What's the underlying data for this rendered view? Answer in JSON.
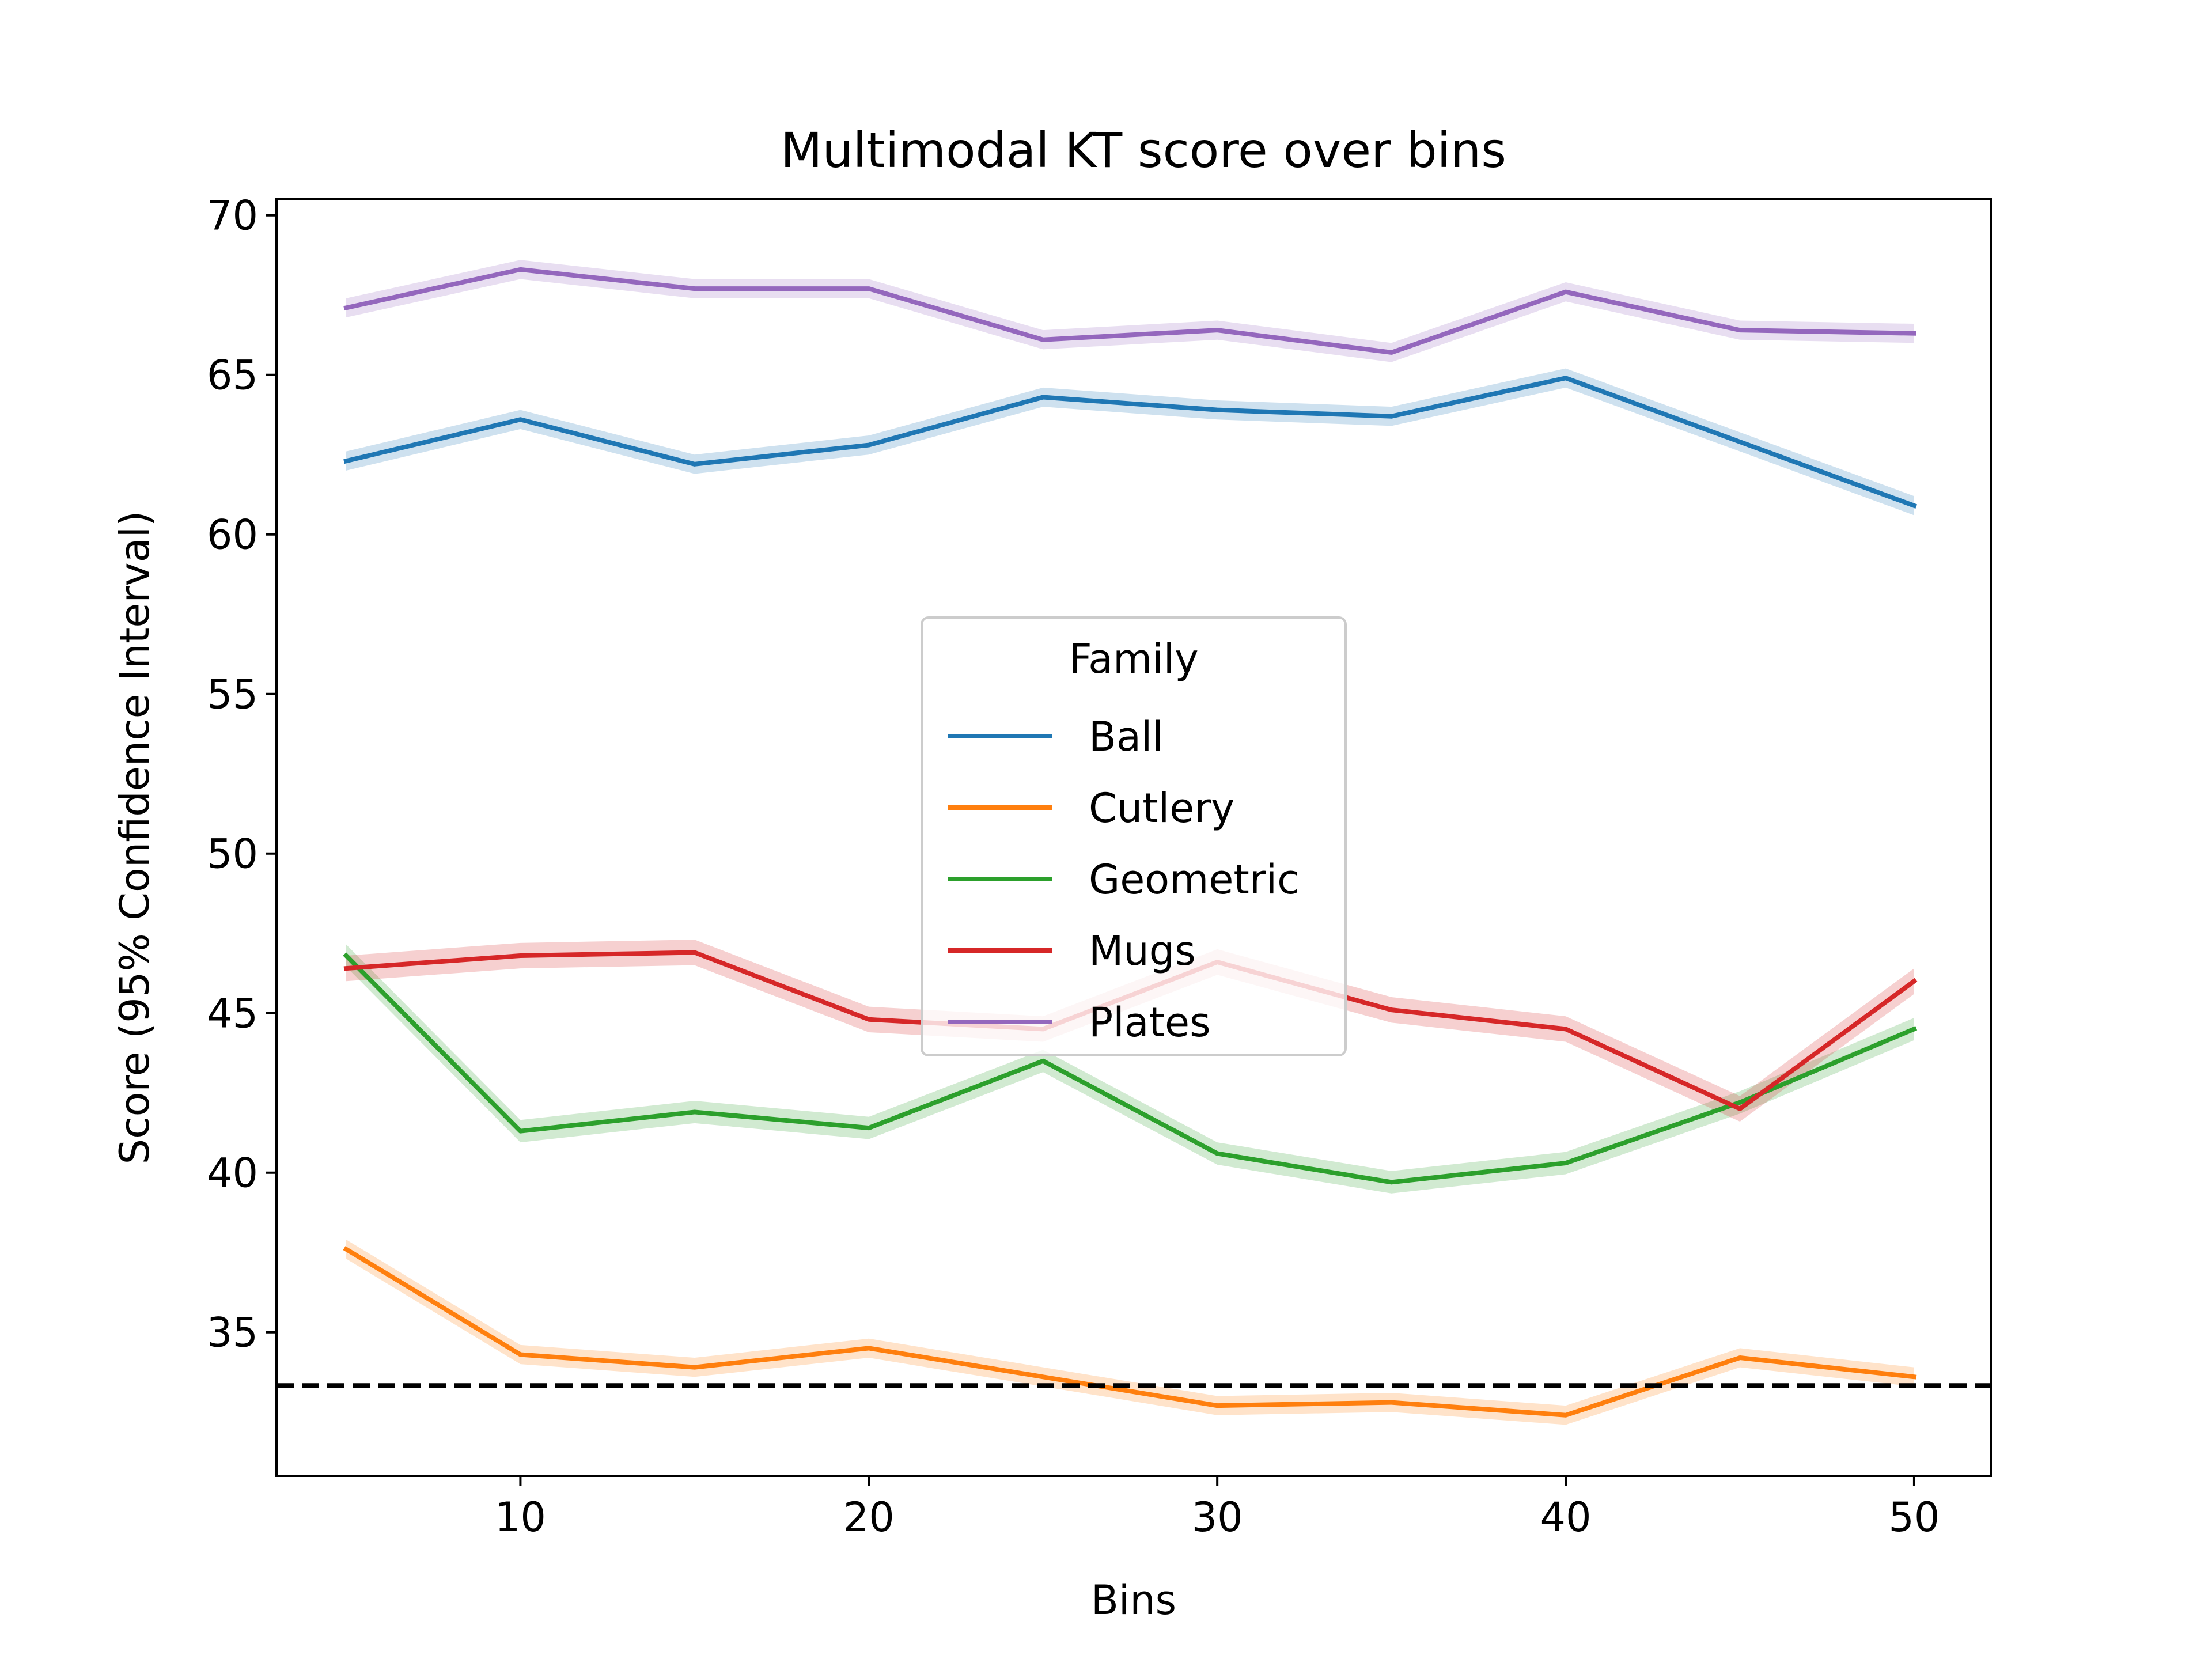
{
  "chart_data": {
    "type": "line",
    "title": "Multimodal KT score over bins",
    "xlabel": "Bins",
    "ylabel": "Score (95% Confidence Interval)",
    "xlim": [
      3,
      52.2
    ],
    "ylim": [
      30.5,
      70.5
    ],
    "x_ticks": [
      10,
      20,
      30,
      40,
      50
    ],
    "y_ticks": [
      35,
      40,
      45,
      50,
      55,
      60,
      65,
      70
    ],
    "grid": false,
    "legend": {
      "title": "Family",
      "placement": "center"
    },
    "reference_line": {
      "y": 33.33,
      "style": "dashed",
      "color": "#000000"
    },
    "x": [
      5,
      10,
      15,
      20,
      25,
      30,
      35,
      40,
      45,
      50
    ],
    "series": [
      {
        "name": "Ball",
        "color": "#1f77b4",
        "values": [
          62.3,
          63.6,
          62.2,
          62.8,
          64.3,
          63.9,
          63.7,
          64.9,
          62.9,
          60.9
        ],
        "ci": 0.3
      },
      {
        "name": "Cutlery",
        "color": "#ff7f0e",
        "values": [
          37.6,
          34.3,
          33.9,
          34.5,
          33.6,
          32.7,
          32.8,
          32.4,
          34.2,
          33.6
        ],
        "ci": 0.3
      },
      {
        "name": "Geometric",
        "color": "#2ca02c",
        "values": [
          46.8,
          41.3,
          41.9,
          41.4,
          43.5,
          40.6,
          39.7,
          40.3,
          42.2,
          44.5
        ],
        "ci": 0.35
      },
      {
        "name": "Mugs",
        "color": "#d62728",
        "values": [
          46.4,
          46.8,
          46.9,
          44.8,
          44.5,
          46.6,
          45.1,
          44.5,
          42.0,
          46.0
        ],
        "ci": 0.4
      },
      {
        "name": "Plates",
        "color": "#9467bd",
        "values": [
          67.1,
          68.3,
          67.7,
          67.7,
          66.1,
          66.4,
          65.7,
          67.6,
          66.4,
          66.3
        ],
        "ci": 0.3
      }
    ]
  }
}
